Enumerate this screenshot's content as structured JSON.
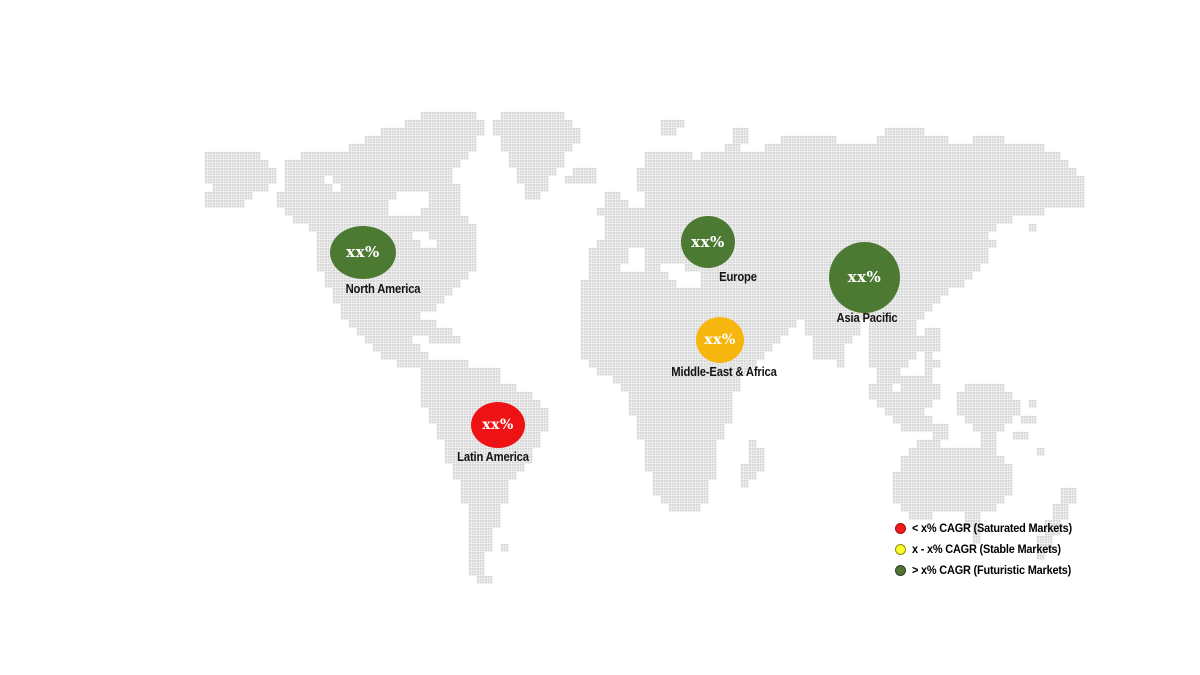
{
  "map": {
    "dot_color": "#c9c9c9",
    "background": "#ffffff"
  },
  "regions": [
    {
      "name": "North America",
      "value": "xx%",
      "color": "#4d7a32"
    },
    {
      "name": "Europe",
      "value": "xx%",
      "color": "#4d7a32"
    },
    {
      "name": "Asia Pacific",
      "value": "xx%",
      "color": "#4d7a32"
    },
    {
      "name": "Middle-East & Africa",
      "value": "xx%",
      "color": "#f6b60d"
    },
    {
      "name": "Latin America",
      "value": "xx%",
      "color": "#ee1214"
    }
  ],
  "legend": {
    "items": [
      {
        "label": "< x% CAGR (Saturated Markets)",
        "color": "#ee1c1c",
        "border_color": "#a50d12"
      },
      {
        "label": "x - x% CAGR (Stable Markets)",
        "color": "#fbfb2e",
        "border_color": "#8f8f00"
      },
      {
        "label": "> x% CAGR (Futuristic Markets)",
        "color": "#547434",
        "border_color": "#2f3e26"
      }
    ]
  }
}
